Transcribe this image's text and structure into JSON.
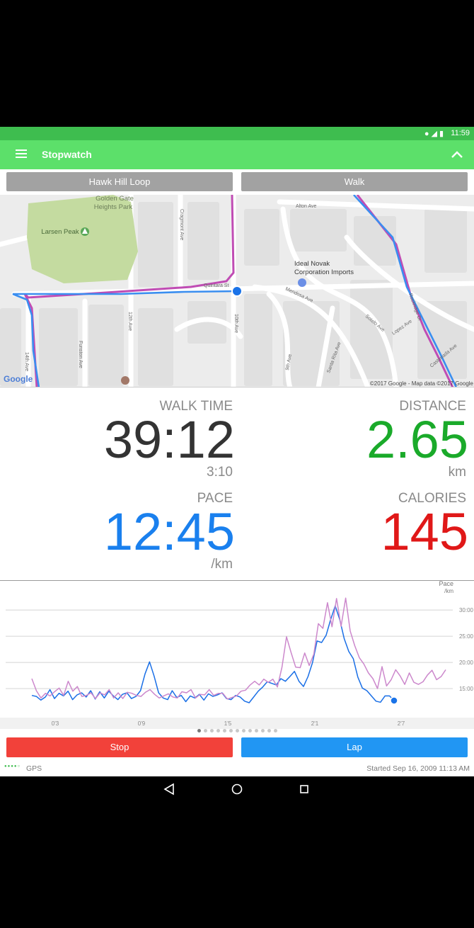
{
  "statusbar": {
    "time": "11:59",
    "icons": [
      "location-icon",
      "signal-icon",
      "battery-icon"
    ]
  },
  "appbar": {
    "title": "Stopwatch"
  },
  "route_button": "Hawk Hill Loop",
  "activity_button": "Walk",
  "map": {
    "labels": {
      "park": "Golden Gate\nHeights Park",
      "park_line1": "Golden Gate",
      "park_line2": "Heights Park",
      "peak": "Larsen Peak",
      "alton": "Alton Ave",
      "craigmont": "Cragmont Ave",
      "business_line1": "Ideal Novak",
      "business_line2": "Corporation Imports",
      "quintara": "Quintara St",
      "mendosa": "Mendosa Ave",
      "twelfth": "12th Ave",
      "tenth": "10th Ave",
      "fourteenth": "14th Ave",
      "funston": "Funston Ave",
      "ninth": "9th Ave",
      "santa_rita": "Santa Rita Ave",
      "sotelo": "Sotelo Ave",
      "lopez": "Lopez Ave",
      "rockridge": "Rockridge Dr",
      "castenada": "Castenada Ave",
      "attribution": "©2017 Google - Map data ©2017 Google",
      "google": "Google"
    }
  },
  "stats": {
    "time_label": "WALK TIME",
    "time_value": "39:12",
    "time_sub": "3:10",
    "distance_label": "DISTANCE",
    "distance_value": "2.65",
    "distance_unit": "km",
    "pace_label": "PACE",
    "pace_value": "12:45",
    "pace_unit": "/km",
    "calories_label": "CALORIES",
    "calories_value": "145"
  },
  "colors": {
    "green_bar": "#5ce06a",
    "distance": "#1aaa2a",
    "pace": "#1a80ee",
    "calories": "#e01818",
    "stop": "#f2413a",
    "lap": "#2196f3"
  },
  "chart_data": {
    "type": "line",
    "title": "",
    "ylabel": "Pace\n/km",
    "ylabel_line1": "Pace",
    "ylabel_line2": "/km",
    "ylim": [
      10,
      33
    ],
    "yticks": [
      15,
      20,
      25,
      30
    ],
    "ytick_labels": [
      "15:00",
      "20:00",
      "25:00",
      "30:00"
    ],
    "xtick_labels": [
      "0'3",
      "0'9",
      "1'5",
      "2'1",
      "2'7"
    ],
    "series": [
      {
        "name": "",
        "color": "#1a6fe6",
        "values": [
          13.7,
          13.5,
          12.8,
          13.4,
          14.8,
          13.1,
          14.1,
          13.6,
          14.5,
          12.9,
          13.8,
          14.2,
          13.4,
          14.6,
          13.0,
          14.4,
          13.2,
          14.5,
          13.6,
          12.9,
          13.9,
          14.2,
          13.1,
          13.5,
          14.6,
          17.8,
          20.1,
          17.4,
          14.2,
          13.2,
          12.9,
          14.6,
          13.3,
          13.7,
          12.5,
          13.6,
          13.2,
          13.9,
          12.8,
          14.0,
          13.5,
          13.8,
          14.2,
          13.1,
          12.9,
          13.7,
          13.4,
          12.6,
          12.3,
          13.4,
          14.5,
          15.3,
          16.3,
          16.0,
          15.7,
          16.9,
          16.4,
          17.3,
          18.3,
          16.4,
          15.4,
          17.3,
          20.0,
          24.1,
          23.8,
          25.2,
          28.2,
          30.8,
          28.2,
          24.5,
          22.1,
          20.7,
          17.2,
          15.1,
          14.6,
          13.6,
          12.6,
          12.4,
          13.6,
          13.6,
          12.7
        ]
      },
      {
        "name": "",
        "color": "#cc88cc",
        "values": [
          16.9,
          14.6,
          13.2,
          14.1,
          13.6,
          14.4,
          15.1,
          13.7,
          16.4,
          14.5,
          15.4,
          13.5,
          13.7,
          14.2,
          13.1,
          14.2,
          13.8,
          14.8,
          13.2,
          14.2,
          13.1,
          14.3,
          14.1,
          13.7,
          13.5,
          14.3,
          14.8,
          13.9,
          13.2,
          13.6,
          14.0,
          13.4,
          13.2,
          14.4,
          14.2,
          14.8,
          13.2,
          13.9,
          13.8,
          14.8,
          13.7,
          14.1,
          14.1,
          13.0,
          13.3,
          13.6,
          14.5,
          14.7,
          15.7,
          16.4,
          15.7,
          16.8,
          16.2,
          16.8,
          15.3,
          19.1,
          24.9,
          21.9,
          19.1,
          19.0,
          21.8,
          19.4,
          21.6,
          27.4,
          26.5,
          31.4,
          26.8,
          32.2,
          26.9,
          32.3,
          26.0,
          23.2,
          20.9,
          19.7,
          18.0,
          16.9,
          15.0,
          19.2,
          15.5,
          16.7,
          18.6,
          17.4,
          15.8,
          18.0,
          16.2,
          15.8,
          16.3,
          17.6,
          18.5,
          16.7,
          17.3,
          18.6
        ]
      }
    ]
  },
  "page_indicator": {
    "count": 13,
    "active": 0
  },
  "buttons": {
    "stop": "Stop",
    "lap": "Lap"
  },
  "footer": {
    "gps": "GPS",
    "started": "Started Sep 16, 2009 11:13 AM"
  },
  "navbar": {
    "icons": [
      "back-icon",
      "home-icon",
      "recents-icon"
    ]
  }
}
